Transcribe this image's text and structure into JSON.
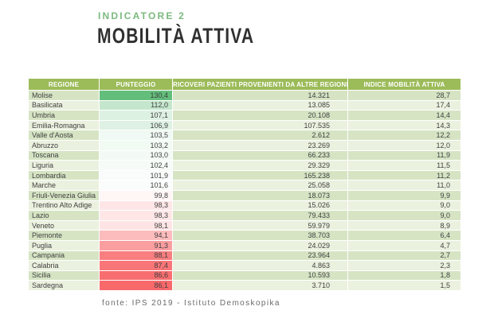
{
  "header": {
    "kicker": "INDICATORE 2",
    "title": "MOBILITÀ ATTIVA"
  },
  "footer": {
    "source": "fonte: IPS 2019 - Istituto Demoskopika"
  },
  "colors": {
    "header_bg": "#9CBB59",
    "row_odd": "#D6E4C4",
    "row_even": "#EBF1DF",
    "kicker": "#7CB97E",
    "title": "#303030",
    "cell_text": "#3F3F3F",
    "footer": "#6A6A6A",
    "scale_high": "#63BE7B",
    "scale_mid": "#FFFFFF",
    "scale_low": "#F8696B"
  },
  "chart_data": {
    "type": "table",
    "title": "MOBILITÀ ATTIVA",
    "subtitle": "INDICATORE 2",
    "columns": [
      "REGIONE",
      "PUNTEGGIO",
      "RICOVERI PAZIENTI PROVENIENTI DA ALTRE REGIONI",
      "INDICE MOBILITÀ ATTIVA"
    ],
    "color_scale": {
      "applies_to": "PUNTEGGIO",
      "low": "#F8696B",
      "mid": "#FFFFFF",
      "high": "#63BE7B"
    },
    "rows": [
      {
        "regione": "Molise",
        "punteggio": "130,4",
        "ricoveri": "14.321",
        "indice": "28,7",
        "score_color": "#63BE7B"
      },
      {
        "regione": "Basilicata",
        "punteggio": "112,0",
        "ricoveri": "13.085",
        "indice": "17,4",
        "score_color": "#C4E6CD"
      },
      {
        "regione": "Umbria",
        "punteggio": "107,1",
        "ricoveri": "20.108",
        "indice": "14,4",
        "score_color": "#DDF1E3"
      },
      {
        "regione": "Emilia-Romagna",
        "punteggio": "106,9",
        "ricoveri": "107.535",
        "indice": "14,3",
        "score_color": "#DEF1E4"
      },
      {
        "regione": "Valle d'Aosta",
        "punteggio": "103,5",
        "ricoveri": "2.612",
        "indice": "12,2",
        "score_color": "#F0F9F3"
      },
      {
        "regione": "Abruzzo",
        "punteggio": "103,2",
        "ricoveri": "23.269",
        "indice": "12,0",
        "score_color": "#F2FAF4"
      },
      {
        "regione": "Toscana",
        "punteggio": "103,0",
        "ricoveri": "66.233",
        "indice": "11,9",
        "score_color": "#F3FAF5"
      },
      {
        "regione": "Liguria",
        "punteggio": "102,4",
        "ricoveri": "29.329",
        "indice": "11,5",
        "score_color": "#F6FBF7"
      },
      {
        "regione": "Lombardia",
        "punteggio": "101,9",
        "ricoveri": "165.238",
        "indice": "11,2",
        "score_color": "#F9FCFA"
      },
      {
        "regione": "Marche",
        "punteggio": "101,6",
        "ricoveri": "25.058",
        "indice": "11,0",
        "score_color": "#FAFDFB"
      },
      {
        "regione": "Friuli-Venezia Giulia",
        "punteggio": "99,8",
        "ricoveri": "18.073",
        "indice": "9,9",
        "score_color": "#FFF6F6"
      },
      {
        "regione": "Trentino Alto Adige",
        "punteggio": "98,3",
        "ricoveri": "15.026",
        "indice": "9,0",
        "score_color": "#FEE6E7"
      },
      {
        "regione": "Lazio",
        "punteggio": "98,3",
        "ricoveri": "79.433",
        "indice": "9,0",
        "score_color": "#FEE6E7"
      },
      {
        "regione": "Veneto",
        "punteggio": "98,1",
        "ricoveri": "59.979",
        "indice": "8,9",
        "score_color": "#FEE4E5"
      },
      {
        "regione": "Piemonte",
        "punteggio": "94,1",
        "ricoveri": "38.703",
        "indice": "6,4",
        "score_color": "#FCBBBC"
      },
      {
        "regione": "Puglia",
        "punteggio": "91,3",
        "ricoveri": "24.029",
        "indice": "4,7",
        "score_color": "#FA9EA0"
      },
      {
        "regione": "Campania",
        "punteggio": "88,1",
        "ricoveri": "23.964",
        "indice": "2,7",
        "score_color": "#F97E7F"
      },
      {
        "regione": "Calabria",
        "punteggio": "87,4",
        "ricoveri": "4.863",
        "indice": "2,3",
        "score_color": "#F97678"
      },
      {
        "regione": "Sicilia",
        "punteggio": "86,6",
        "ricoveri": "10.593",
        "indice": "1,8",
        "score_color": "#F86E70"
      },
      {
        "regione": "Sardegna",
        "punteggio": "86,1",
        "ricoveri": "3.710",
        "indice": "1,5",
        "score_color": "#F8696B"
      }
    ]
  }
}
